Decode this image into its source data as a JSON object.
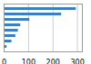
{
  "chart_data": {
    "type": "bar",
    "orientation": "horizontal",
    "categories": [
      null,
      null,
      null,
      null,
      null,
      null,
      null,
      null
    ],
    "values": [
      295,
      235,
      105,
      68,
      58,
      48,
      32,
      12
    ],
    "color": "#3a7fc1",
    "xlim": [
      0,
      320
    ],
    "xticks": [
      0,
      100,
      200,
      300
    ],
    "grid": true,
    "tick_labels": "x"
  }
}
